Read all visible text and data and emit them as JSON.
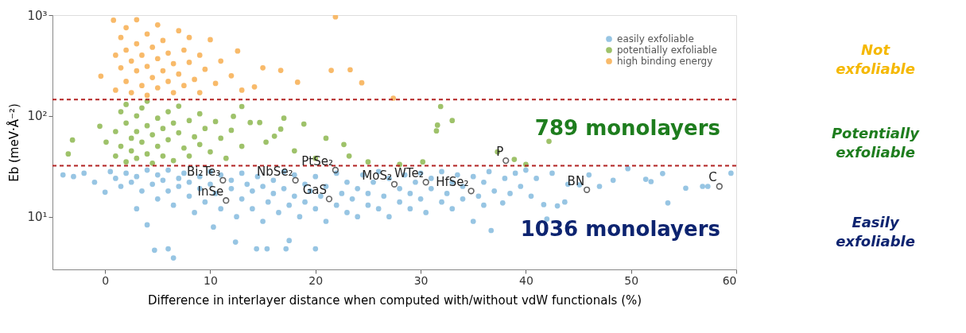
{
  "chart_data": {
    "type": "scatter",
    "xlabel": "Difference in interlayer distance when computed with/without vdW functionals (%)",
    "ylabel": "Eb (meV·Å⁻²)",
    "xlim": [
      -5,
      60
    ],
    "xticks": [
      0,
      10,
      20,
      30,
      40,
      50,
      60
    ],
    "ylim": [
      3,
      1000
    ],
    "yticks": [
      {
        "value": 10,
        "label": "10¹"
      },
      {
        "value": 100,
        "label": "10²"
      },
      {
        "value": 1000,
        "label": "10³"
      }
    ],
    "log": "y",
    "grid": false,
    "legend": "top right",
    "marker": "circle",
    "series": [
      {
        "name": "easily exfoliable",
        "color": "#8cbfe0",
        "x": [
          -4,
          -3,
          -2,
          -1,
          0,
          0.5,
          1,
          1.5,
          2,
          2.5,
          3,
          3,
          3.5,
          4,
          4,
          4.5,
          5,
          5,
          5.5,
          6,
          6,
          6.5,
          7,
          7,
          7.5,
          8,
          8,
          8.5,
          9,
          9,
          9.5,
          10,
          10,
          10.3,
          10.5,
          11,
          11,
          12,
          12,
          12.4,
          12.5,
          13,
          13,
          13.5,
          14,
          14,
          14.4,
          14.5,
          15,
          15,
          15.4,
          15.5,
          16,
          16,
          16.5,
          17,
          17,
          17.2,
          17.5,
          17.5,
          18,
          18,
          18.5,
          19,
          19,
          19.5,
          20,
          20,
          20,
          20.5,
          21,
          21,
          22,
          22,
          22.5,
          23,
          23,
          23.5,
          24,
          24,
          24.5,
          25,
          25,
          25.5,
          26,
          26,
          26.5,
          27,
          27,
          28,
          28,
          28.5,
          29,
          29,
          29.5,
          30,
          30,
          30.5,
          31,
          31,
          32,
          32,
          32.5,
          33,
          33,
          33.5,
          34,
          34,
          35,
          35,
          35.5,
          36,
          36,
          36.5,
          36.7,
          37,
          37.8,
          38,
          38.5,
          39,
          39.5,
          40,
          40.5,
          41,
          41.7,
          42,
          42.5,
          43,
          43.7,
          44,
          45.1,
          46,
          47,
          48.3,
          49.7,
          51.4,
          51.9,
          53,
          53.5,
          55.2,
          56.8,
          57.3,
          59.5,
          4.7,
          6,
          6.5
        ],
        "values": [
          26,
          25,
          27,
          22,
          17.5,
          28,
          24,
          20,
          27,
          22,
          25,
          12,
          18,
          8.3,
          29,
          21,
          26,
          15,
          23,
          18,
          29,
          13,
          24,
          20,
          27,
          16,
          22,
          11,
          25,
          19,
          14,
          28,
          21,
          7.9,
          17,
          12,
          26,
          19,
          23,
          5.6,
          10,
          27,
          15,
          21,
          18,
          12,
          4.8,
          25,
          20,
          9,
          4.8,
          14,
          23,
          17,
          11,
          28,
          19,
          4.8,
          5.8,
          13,
          16,
          26,
          10,
          21,
          14,
          18,
          4.8,
          12,
          25,
          16,
          9,
          20,
          13,
          27,
          17,
          11,
          22,
          15,
          19,
          10,
          26,
          13,
          17,
          22,
          12,
          28,
          16,
          10,
          24,
          14,
          19,
          26,
          12,
          17,
          22,
          15,
          27,
          11,
          19,
          24,
          14,
          28,
          17,
          12,
          22,
          26,
          15,
          20,
          9,
          25,
          16,
          13,
          22,
          28,
          7.3,
          18,
          13.7,
          24,
          17,
          27,
          20,
          29,
          16,
          24,
          13.2,
          9.5,
          27,
          12.8,
          14,
          21,
          20.7,
          26,
          20,
          23,
          30,
          23.5,
          22.3,
          26.8,
          13.7,
          19.2,
          20,
          20,
          27,
          4.65,
          4.8,
          3.9
        ]
      },
      {
        "name": "potentially exfoliable",
        "color": "#93bb5a",
        "x": [
          -3.5,
          -3.1,
          -0.5,
          0.1,
          1,
          1,
          1.5,
          1.5,
          2,
          2,
          2,
          2.5,
          2.5,
          3,
          3,
          3,
          3.5,
          3.5,
          4,
          4,
          4,
          4.5,
          4.5,
          5,
          5,
          5.5,
          5.5,
          6,
          6,
          6.5,
          6.5,
          7,
          7,
          7.5,
          8,
          8,
          8.5,
          9,
          9,
          9.5,
          10,
          10.5,
          11,
          11.5,
          12,
          12.2,
          13,
          13,
          13.8,
          14.7,
          15.3,
          16.1,
          16.7,
          17,
          18,
          18.9,
          20,
          21,
          22.7,
          23.2,
          25,
          28,
          30.2,
          31.5,
          31.6,
          31.9,
          33,
          37.3,
          38.9,
          40,
          42.2
        ],
        "values": [
          42,
          57.6,
          79,
          55,
          40,
          70,
          110,
          50,
          35,
          85,
          130,
          60,
          45,
          100,
          38,
          70,
          120,
          55,
          80,
          42,
          140,
          65,
          34,
          95,
          50,
          75,
          40,
          110,
          58,
          85,
          36,
          68,
          125,
          48,
          90,
          40,
          62,
          105,
          52,
          75,
          44,
          88,
          60,
          38,
          72,
          99,
          124,
          50,
          86,
          86,
          55,
          63,
          74,
          95,
          45,
          83,
          38,
          60,
          52,
          40,
          35,
          33,
          35,
          71,
          81,
          124,
          90,
          44,
          37,
          33,
          56
        ]
      },
      {
        "name": "high binding energy",
        "color": "#f7b35a",
        "x": [
          -0.4,
          0.8,
          1,
          1,
          1.5,
          1.5,
          2,
          2,
          2,
          2.5,
          2.5,
          3,
          3,
          3,
          3.5,
          3.5,
          4,
          4,
          4,
          4.5,
          4.5,
          5,
          5,
          5,
          5.5,
          5.5,
          6,
          6,
          6.5,
          6.5,
          7,
          7,
          7.5,
          7.5,
          8,
          8,
          8.5,
          9,
          9,
          9.5,
          10,
          10.5,
          11,
          12,
          12.6,
          13,
          14.2,
          15,
          16.7,
          18.3,
          21.5,
          21.9,
          23.3,
          24.4,
          27.4
        ],
        "values": [
          248,
          890,
          400,
          180,
          300,
          600,
          220,
          450,
          750,
          350,
          170,
          280,
          520,
          900,
          200,
          400,
          650,
          310,
          160,
          240,
          480,
          370,
          190,
          800,
          280,
          560,
          220,
          420,
          330,
          170,
          700,
          260,
          450,
          200,
          340,
          600,
          230,
          400,
          170,
          290,
          570,
          210,
          350,
          250,
          440,
          180,
          194,
          300,
          283,
          216,
          283,
          960,
          287,
          213,
          150
        ]
      }
    ],
    "ref_lines": [
      {
        "axis": "y",
        "value": 145,
        "color": "#b22222",
        "line_style": "dashed"
      },
      {
        "axis": "y",
        "value": 32,
        "color": "#b22222",
        "line_style": "dashed"
      }
    ],
    "annotations": [
      {
        "text": "Bi₂Te₃",
        "x": 11.2,
        "y": 23
      },
      {
        "text": "InSe",
        "x": 11.5,
        "y": 14.5
      },
      {
        "text": "NbSe₂",
        "x": 18.1,
        "y": 23
      },
      {
        "text": "PtSe₂",
        "x": 21.9,
        "y": 29
      },
      {
        "text": "GaS",
        "x": 21.3,
        "y": 15
      },
      {
        "text": "MoS₂",
        "x": 27.5,
        "y": 21
      },
      {
        "text": "WTe₂",
        "x": 30.5,
        "y": 22
      },
      {
        "text": "HfSe₂",
        "x": 34.8,
        "y": 18
      },
      {
        "text": "P",
        "x": 38.1,
        "y": 36
      },
      {
        "text": "BN",
        "x": 45.8,
        "y": 18.5
      },
      {
        "text": "C",
        "x": 58.4,
        "y": 20
      },
      "789 monolayers",
      "1036 monolayers",
      "Not exfoliable",
      "Potentially exfoliable",
      "Easily exfoliable"
    ]
  }
}
